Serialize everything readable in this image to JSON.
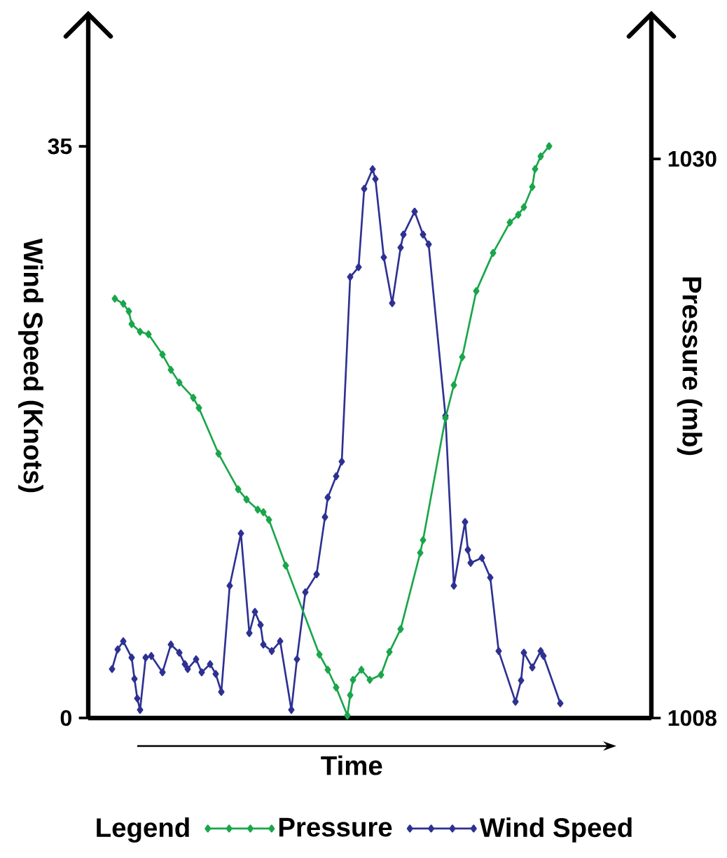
{
  "chart_data": {
    "type": "line",
    "xlabel": "Time",
    "ylabel": "Wind Speed (Knots)",
    "y2label": "Pressure (mb)",
    "legend_title": "Legend",
    "legend": "bottom",
    "marker": "diamond",
    "line_style": "solid",
    "tick_labels": "y",
    "ylim": [
      0,
      43.1
    ],
    "yticks": [
      0,
      35
    ],
    "y2lim": [
      1008,
      1035.7
    ],
    "y2ticks": [
      1008,
      1030
    ],
    "categories": [
      null,
      null,
      null,
      null,
      null,
      null,
      null,
      null,
      null,
      null,
      null,
      null,
      null,
      null,
      null,
      null,
      null,
      null,
      null,
      null,
      null,
      null,
      null,
      null,
      null,
      null,
      null,
      null,
      null,
      null,
      null,
      null,
      null,
      null,
      null,
      null,
      null,
      null,
      null,
      null,
      null,
      null,
      null,
      null,
      null,
      null,
      null,
      null,
      null,
      null,
      null,
      null,
      null,
      null,
      null,
      null,
      null,
      null,
      null,
      null,
      null,
      null,
      null,
      null,
      null,
      null,
      null,
      null,
      null,
      null,
      null,
      null,
      null,
      null,
      null,
      null,
      null,
      null,
      null,
      null,
      null,
      null,
      null,
      null,
      null,
      null,
      null,
      null,
      null,
      null,
      null,
      null,
      null,
      null,
      null,
      null,
      null,
      null,
      null,
      null,
      null,
      null,
      null,
      null,
      null,
      null,
      null,
      null,
      null,
      null,
      null,
      null,
      null,
      null,
      null,
      null,
      null,
      null,
      null,
      null,
      null,
      null,
      null,
      null,
      null,
      null,
      null,
      null,
      null,
      null,
      null,
      null,
      null,
      null,
      null,
      null,
      null,
      null,
      null,
      null,
      null,
      null,
      null,
      null,
      null,
      null,
      null,
      null,
      null,
      null,
      null,
      null,
      null,
      null,
      null,
      null,
      null,
      null,
      null,
      null,
      null,
      null,
      null,
      null,
      null,
      null,
      null,
      null,
      null,
      null,
      null,
      null,
      null,
      null,
      null,
      null,
      null,
      null,
      null,
      null,
      null,
      null,
      null,
      null,
      null,
      null,
      null,
      null,
      null,
      null,
      null,
      null,
      null,
      null,
      null,
      null,
      null,
      null,
      null,
      null,
      null
    ],
    "series": [
      {
        "name": "Pressure",
        "color": "#1aa64a",
        "axis": "y2",
        "values": [
          null,
          null,
          null,
          null,
          null,
          null,
          null,
          null,
          null,
          1024.5,
          null,
          null,
          1024.3,
          null,
          1024.0,
          1023.5,
          null,
          null,
          1023.2,
          null,
          null,
          1023.1,
          null,
          null,
          null,
          null,
          1022.3,
          null,
          null,
          1021.7,
          null,
          null,
          1021.2,
          null,
          null,
          null,
          null,
          1020.6,
          null,
          1020.2,
          null,
          null,
          null,
          null,
          null,
          null,
          1018.4,
          null,
          null,
          null,
          null,
          null,
          null,
          1017.0,
          null,
          null,
          1016.6,
          null,
          null,
          null,
          1016.2,
          null,
          1016.1,
          null,
          1015.8,
          null,
          null,
          null,
          null,
          null,
          1014.0,
          null,
          null,
          null,
          null,
          null,
          null,
          null,
          null,
          null,
          null,
          null,
          1010.5,
          null,
          null,
          1009.9,
          null,
          null,
          1009.2,
          null,
          null,
          null,
          1008.1,
          1008.9,
          1009.5,
          null,
          null,
          1009.9,
          null,
          null,
          1009.5,
          null,
          null,
          null,
          1009.7,
          null,
          null,
          1010.6,
          null,
          null,
          null,
          1011.5,
          null,
          null,
          null,
          null,
          null,
          null,
          1014.5,
          1015.0,
          null,
          null,
          null,
          null,
          null,
          null,
          null,
          1019.8,
          null,
          null,
          1021.1,
          null,
          null,
          1022.2,
          null,
          null,
          null,
          null,
          1024.8,
          null,
          null,
          null,
          null,
          null,
          1026.3,
          null,
          null,
          null,
          null,
          null,
          1027.5,
          null,
          null,
          1027.8,
          null,
          1028.1,
          null,
          null,
          1028.9,
          1029.6,
          null,
          1030.1,
          null,
          null,
          1030.5,
          null,
          null,
          null,
          null,
          null,
          null,
          null,
          null,
          null,
          null,
          null,
          null,
          null,
          null,
          null,
          null,
          null,
          null,
          null,
          null,
          null,
          null,
          null,
          null,
          null,
          null,
          null,
          null,
          null,
          null,
          null,
          null,
          null,
          null,
          null,
          null
        ]
      },
      {
        "name": "Wind Speed",
        "color": "#2e3192",
        "values": [
          null,
          null,
          null,
          null,
          null,
          null,
          null,
          null,
          3.0,
          null,
          4.2,
          null,
          4.7,
          null,
          null,
          3.7,
          2.4,
          1.2,
          0.5,
          null,
          3.7,
          null,
          3.8,
          null,
          null,
          null,
          2.8,
          null,
          null,
          4.5,
          null,
          null,
          4.0,
          null,
          3.3,
          3.0,
          null,
          null,
          3.6,
          null,
          2.8,
          null,
          null,
          3.3,
          null,
          2.7,
          null,
          1.6,
          null,
          null,
          8.1,
          null,
          null,
          null,
          11.3,
          null,
          null,
          5.2,
          null,
          6.5,
          null,
          5.7,
          4.5,
          null,
          null,
          4.1,
          null,
          null,
          4.7,
          null,
          null,
          null,
          0.5,
          null,
          3.6,
          null,
          null,
          7.7,
          null,
          null,
          null,
          8.8,
          null,
          null,
          12.3,
          13.5,
          null,
          null,
          14.8,
          null,
          15.7,
          null,
          null,
          27.0,
          null,
          null,
          27.6,
          null,
          32.4,
          null,
          null,
          33.6,
          33.0,
          null,
          null,
          28.2,
          null,
          null,
          25.4,
          null,
          null,
          28.8,
          29.6,
          null,
          null,
          null,
          31.0,
          null,
          null,
          29.6,
          null,
          29.0,
          null,
          null,
          null,
          null,
          null,
          18.5,
          null,
          null,
          8.1,
          null,
          null,
          null,
          12.0,
          10.3,
          9.5,
          null,
          null,
          null,
          9.8,
          null,
          null,
          8.6,
          null,
          null,
          4.1,
          null,
          null,
          null,
          null,
          null,
          1.0,
          null,
          2.3,
          4.0,
          null,
          null,
          3.1,
          null,
          null,
          4.1,
          3.8,
          null,
          null,
          null,
          null,
          null,
          0.9,
          null,
          null,
          null,
          null,
          null,
          null,
          null,
          null,
          null,
          null,
          null,
          null,
          null,
          null,
          null,
          null,
          null,
          null,
          null,
          null,
          null,
          null,
          null,
          null,
          null,
          null,
          null,
          null,
          null,
          null,
          null,
          null
        ]
      }
    ]
  }
}
